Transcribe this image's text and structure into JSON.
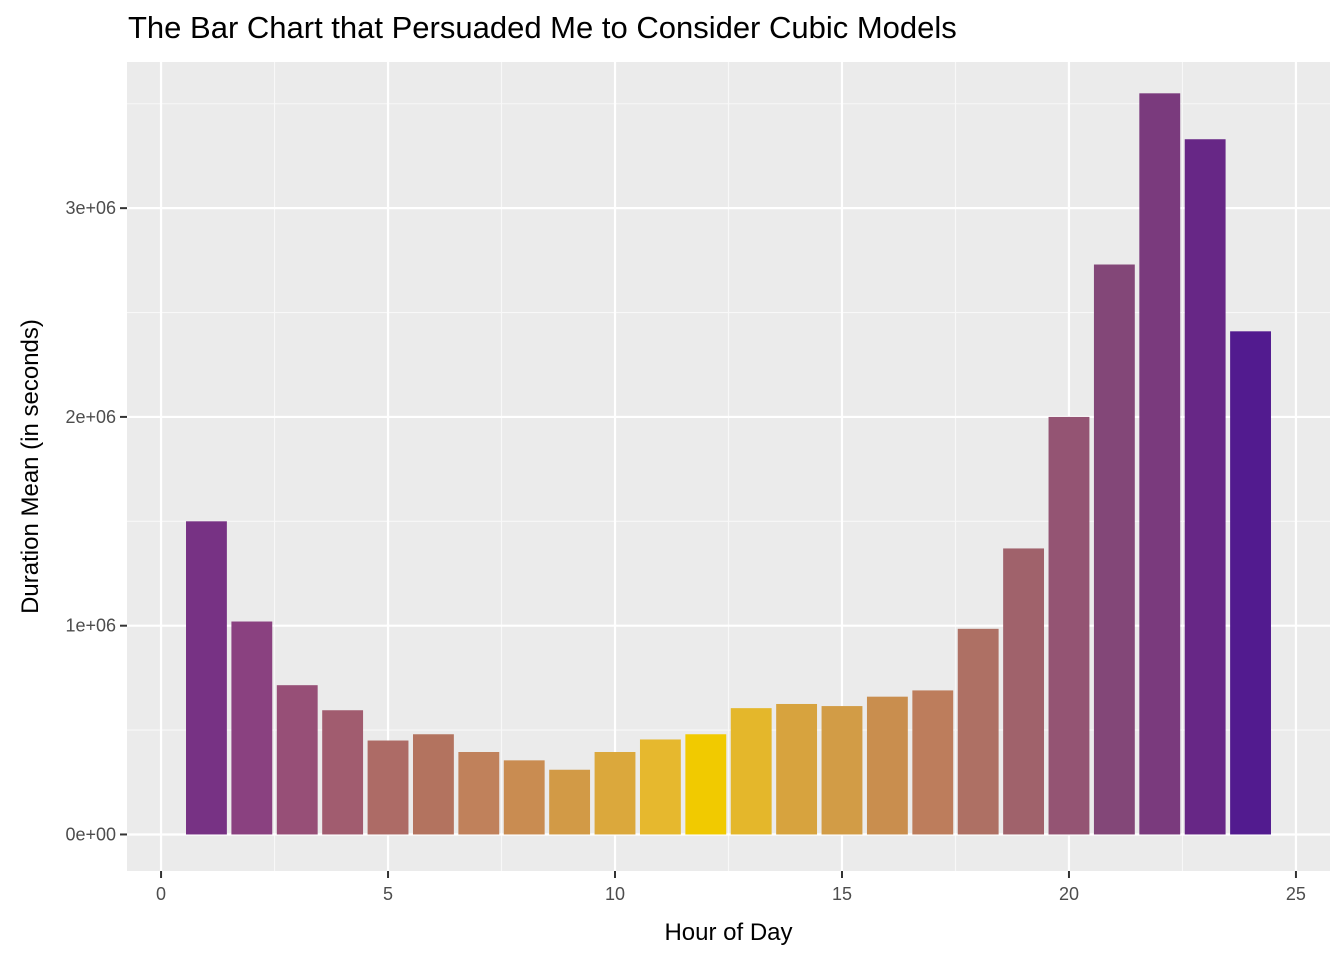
{
  "chart_data": {
    "type": "bar",
    "title": "The Bar Chart that Persuaded Me to Consider Cubic Models",
    "xlabel": "Hour of Day",
    "ylabel": "Duration Mean (in seconds)",
    "xlim": [
      -0.75,
      25.75
    ],
    "ylim": [
      -175000,
      3700000
    ],
    "x_ticks": [
      0,
      5,
      10,
      15,
      20,
      25
    ],
    "x_tick_labels": [
      "0",
      "5",
      "10",
      "15",
      "20",
      "25"
    ],
    "y_ticks": [
      0,
      1000000,
      2000000,
      3000000
    ],
    "y_tick_labels": [
      "0e+00",
      "1e+06",
      "2e+06",
      "3e+06"
    ],
    "grid": true,
    "legend": "none",
    "background": "#ebebeb",
    "bars": [
      {
        "x": 1,
        "value": 1500000,
        "color": "#773284"
      },
      {
        "x": 2,
        "value": 1020000,
        "color": "#8a4180"
      },
      {
        "x": 3,
        "value": 715000,
        "color": "#974f77"
      },
      {
        "x": 4,
        "value": 595000,
        "color": "#a15c6f"
      },
      {
        "x": 5,
        "value": 450000,
        "color": "#ad6b66"
      },
      {
        "x": 6,
        "value": 480000,
        "color": "#b3735f"
      },
      {
        "x": 7,
        "value": 395000,
        "color": "#c0815b"
      },
      {
        "x": 8,
        "value": 355000,
        "color": "#c98c51"
      },
      {
        "x": 9,
        "value": 310000,
        "color": "#d29a46"
      },
      {
        "x": 10,
        "value": 395000,
        "color": "#dba83c"
      },
      {
        "x": 11,
        "value": 455000,
        "color": "#e6b82e"
      },
      {
        "x": 12,
        "value": 480000,
        "color": "#f1ca00"
      },
      {
        "x": 13,
        "value": 605000,
        "color": "#e4b72b"
      },
      {
        "x": 14,
        "value": 625000,
        "color": "#d7a33e"
      },
      {
        "x": 15,
        "value": 615000,
        "color": "#d29c46"
      },
      {
        "x": 16,
        "value": 660000,
        "color": "#c98e4e"
      },
      {
        "x": 17,
        "value": 690000,
        "color": "#bd7d5c"
      },
      {
        "x": 18,
        "value": 985000,
        "color": "#ae7064"
      },
      {
        "x": 19,
        "value": 1370000,
        "color": "#a0626b"
      },
      {
        "x": 20,
        "value": 2000000,
        "color": "#945473"
      },
      {
        "x": 21,
        "value": 2730000,
        "color": "#834778"
      },
      {
        "x": 22,
        "value": 3550000,
        "color": "#7a3a7d"
      },
      {
        "x": 23,
        "value": 3330000,
        "color": "#672786"
      },
      {
        "x": 24,
        "value": 2410000,
        "color": "#521b8f"
      }
    ]
  }
}
